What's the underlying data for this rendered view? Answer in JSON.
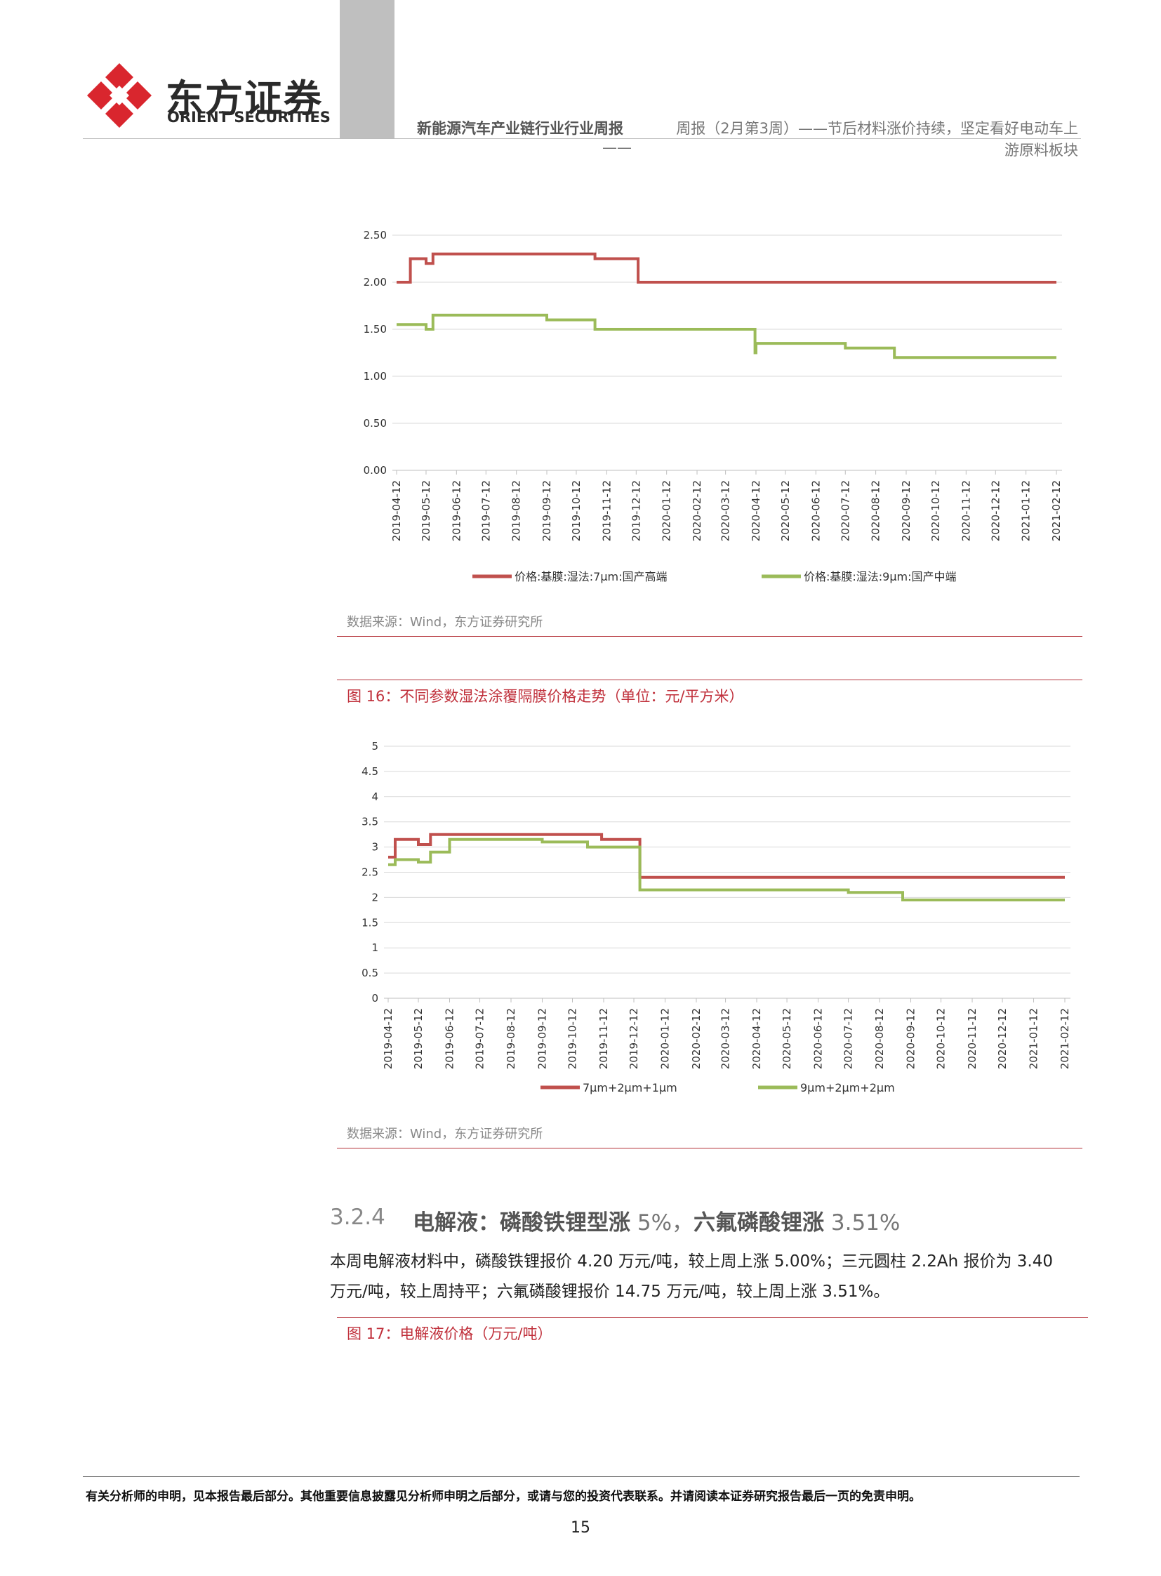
{
  "header": {
    "logo_cn": "东方证券",
    "logo_en": "ORIENT SECURITIES",
    "report_name": "新能源汽车产业链行业行业周报",
    "title_line1": "周报（2月第3周）——节后材料涨价持续，坚定看好电动车上",
    "title_line2": "游原料板块",
    "title_dash": "——",
    "colors": {
      "brand_red": "#d9262e",
      "gray_bar": "#bfbfbf"
    }
  },
  "figure15": {
    "source": "数据来源：Wind，东方证券研究所"
  },
  "figure16": {
    "title": "图 16：不同参数湿法涂覆隔膜价格走势（单位：元/平方米）",
    "source": "数据来源：Wind，东方证券研究所"
  },
  "section": {
    "number": "3.2.4",
    "title_bold": "电解液：磷酸铁锂型涨",
    "title_rest_1": " 5%，",
    "title_bold_2": "六氟磷酸锂涨",
    "title_rest_2": " 3.51%"
  },
  "body": {
    "line1": "本周电解液材料中，磷酸铁锂报价 4.20 万元/吨，较上周上涨 5.00%；三元圆柱 2.2Ah 报价为 3.40",
    "line2": "万元/吨，较上周持平；六氟磷酸锂报价 14.75 万元/吨，较上周上涨 3.51%。"
  },
  "figure17": {
    "title": "图 17：电解液价格（万元/吨）"
  },
  "footer": {
    "disclaimer": "有关分析师的申明，见本报告最后部分。其他重要信息披露见分析师申明之后部分，或请与您的投资代表联系。并请阅读本证券研究报告最后一页的免责申明。",
    "page_number": "15"
  },
  "chart_data": [
    {
      "type": "line",
      "title": "",
      "x_ticks": [
        "2019-04-12",
        "2019-05-12",
        "2019-06-12",
        "2019-07-12",
        "2019-08-12",
        "2019-09-12",
        "2019-10-12",
        "2019-11-12",
        "2019-12-12",
        "2020-01-12",
        "2020-02-12",
        "2020-03-12",
        "2020-04-12",
        "2020-05-12",
        "2020-06-12",
        "2020-07-12",
        "2020-08-12",
        "2020-09-12",
        "2020-10-12",
        "2020-11-12",
        "2020-12-12",
        "2021-01-12",
        "2021-02-12"
      ],
      "y_ticks": [
        "0.00",
        "0.50",
        "1.00",
        "1.50",
        "2.00",
        "2.50"
      ],
      "ylim": [
        0,
        2.5
      ],
      "grid": true,
      "legend_position": "bottom",
      "series": [
        {
          "name": "价格:基膜:湿法:7μm:国产高端",
          "color": "#c0504d",
          "points": [
            [
              "2019-04-12",
              2.0
            ],
            [
              "2019-04-26",
              2.0
            ],
            [
              "2019-04-26",
              2.25
            ],
            [
              "2019-05-12",
              2.25
            ],
            [
              "2019-05-12",
              2.2
            ],
            [
              "2019-05-19",
              2.2
            ],
            [
              "2019-05-19",
              2.3
            ],
            [
              "2019-10-31",
              2.3
            ],
            [
              "2019-10-31",
              2.25
            ],
            [
              "2019-12-14",
              2.25
            ],
            [
              "2019-12-14",
              2.0
            ],
            [
              "2021-02-12",
              2.0
            ]
          ]
        },
        {
          "name": "价格:基膜:湿法:9μm:国产中端",
          "color": "#9bbb59",
          "points": [
            [
              "2019-04-12",
              1.55
            ],
            [
              "2019-05-12",
              1.55
            ],
            [
              "2019-05-12",
              1.5
            ],
            [
              "2019-05-19",
              1.5
            ],
            [
              "2019-05-19",
              1.65
            ],
            [
              "2019-09-12",
              1.65
            ],
            [
              "2019-09-12",
              1.6
            ],
            [
              "2019-10-31",
              1.6
            ],
            [
              "2019-10-31",
              1.5
            ],
            [
              "2020-04-11",
              1.5
            ],
            [
              "2020-04-11",
              1.25
            ],
            [
              "2020-04-12",
              1.25
            ],
            [
              "2020-04-12",
              1.35
            ],
            [
              "2020-07-12",
              1.35
            ],
            [
              "2020-07-12",
              1.3
            ],
            [
              "2020-08-31",
              1.3
            ],
            [
              "2020-08-31",
              1.2
            ],
            [
              "2021-02-12",
              1.2
            ]
          ]
        }
      ]
    },
    {
      "type": "line",
      "title": "图 16：不同参数湿法涂覆隔膜价格走势（单位：元/平方米）",
      "x_ticks": [
        "2019-04-12",
        "2019-05-12",
        "2019-06-12",
        "2019-07-12",
        "2019-08-12",
        "2019-09-12",
        "2019-10-12",
        "2019-11-12",
        "2019-12-12",
        "2020-01-12",
        "2020-02-12",
        "2020-03-12",
        "2020-04-12",
        "2020-05-12",
        "2020-06-12",
        "2020-07-12",
        "2020-08-12",
        "2020-09-12",
        "2020-10-12",
        "2020-11-12",
        "2020-12-12",
        "2021-01-12",
        "2021-02-12"
      ],
      "y_ticks": [
        "0",
        "0.5",
        "1",
        "1.5",
        "2",
        "2.5",
        "3",
        "3.5",
        "4",
        "4.5",
        "5"
      ],
      "ylim": [
        0,
        5
      ],
      "grid": true,
      "legend_position": "bottom",
      "series": [
        {
          "name": "7μm+2μm+1μm",
          "color": "#c0504d",
          "points": [
            [
              "2019-04-12",
              2.8
            ],
            [
              "2019-04-19",
              2.8
            ],
            [
              "2019-04-19",
              3.15
            ],
            [
              "2019-05-12",
              3.15
            ],
            [
              "2019-05-12",
              3.05
            ],
            [
              "2019-05-24",
              3.05
            ],
            [
              "2019-05-24",
              3.25
            ],
            [
              "2019-11-10",
              3.25
            ],
            [
              "2019-11-10",
              3.15
            ],
            [
              "2019-12-18",
              3.15
            ],
            [
              "2019-12-18",
              2.4
            ],
            [
              "2021-02-12",
              2.4
            ]
          ]
        },
        {
          "name": "9μm+2μm+2μm",
          "color": "#9bbb59",
          "points": [
            [
              "2019-04-12",
              2.65
            ],
            [
              "2019-04-19",
              2.65
            ],
            [
              "2019-04-19",
              2.75
            ],
            [
              "2019-05-12",
              2.75
            ],
            [
              "2019-05-12",
              2.7
            ],
            [
              "2019-05-24",
              2.7
            ],
            [
              "2019-05-24",
              2.9
            ],
            [
              "2019-06-12",
              2.9
            ],
            [
              "2019-06-12",
              3.15
            ],
            [
              "2019-09-12",
              3.15
            ],
            [
              "2019-09-12",
              3.1
            ],
            [
              "2019-10-27",
              3.1
            ],
            [
              "2019-10-27",
              3.0
            ],
            [
              "2019-12-18",
              3.0
            ],
            [
              "2019-12-18",
              2.15
            ],
            [
              "2020-07-12",
              2.15
            ],
            [
              "2020-07-12",
              2.1
            ],
            [
              "2020-09-04",
              2.1
            ],
            [
              "2020-09-04",
              1.95
            ],
            [
              "2021-02-12",
              1.95
            ]
          ]
        }
      ]
    }
  ]
}
